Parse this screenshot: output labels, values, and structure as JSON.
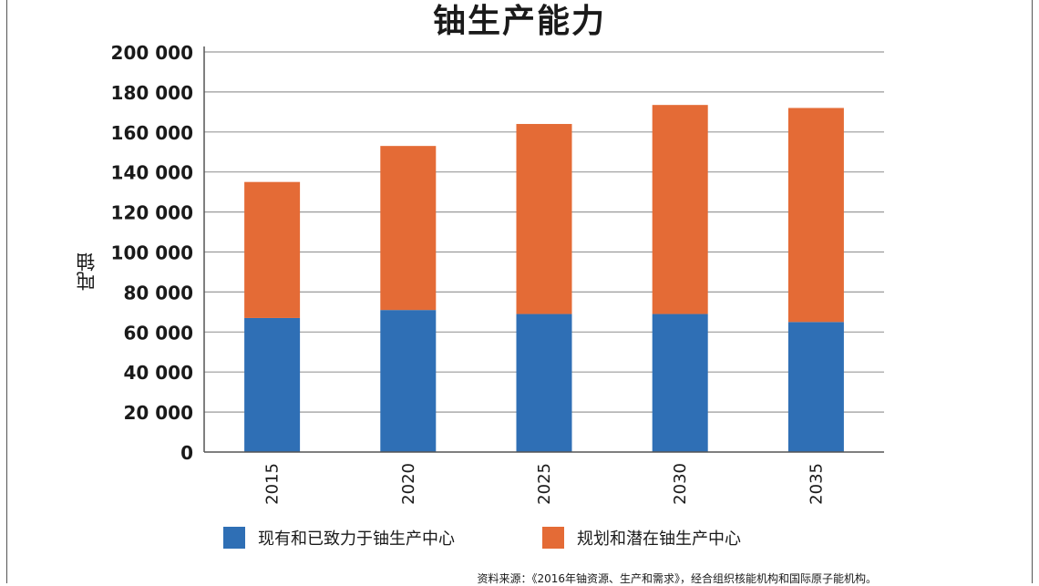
{
  "title": "铀生产能力",
  "source": "资料来源：《2016年铀资源、生产和需求》，经合组织核能机构和国际原子能机构。",
  "colors": {
    "series1": "#2f6fb5",
    "series2": "#e46b36",
    "grid": "#9a9a9a",
    "axis": "#555555"
  },
  "chart_data": {
    "type": "bar",
    "stacked": true,
    "title": "铀生产能力",
    "xlabel": "",
    "ylabel": "吨铀",
    "categories": [
      "2015",
      "2020",
      "2025",
      "2030",
      "2035"
    ],
    "series": [
      {
        "name": "现有和已致力于铀生产中心",
        "values": [
          67000,
          71000,
          69000,
          69000,
          65000
        ]
      },
      {
        "name": "规划和潜在铀生产中心",
        "values": [
          68000,
          82000,
          95000,
          104500,
          107000
        ]
      }
    ],
    "ylim": [
      0,
      200000
    ],
    "yticks": [
      0,
      20000,
      40000,
      60000,
      80000,
      100000,
      120000,
      140000,
      160000,
      180000,
      200000
    ],
    "ytick_labels": [
      "0",
      "20 000",
      "40 000",
      "60 000",
      "80 000",
      "100 000",
      "120 000",
      "140 000",
      "160 000",
      "180 000",
      "200 000"
    ],
    "grid": true,
    "legend_position": "bottom"
  }
}
